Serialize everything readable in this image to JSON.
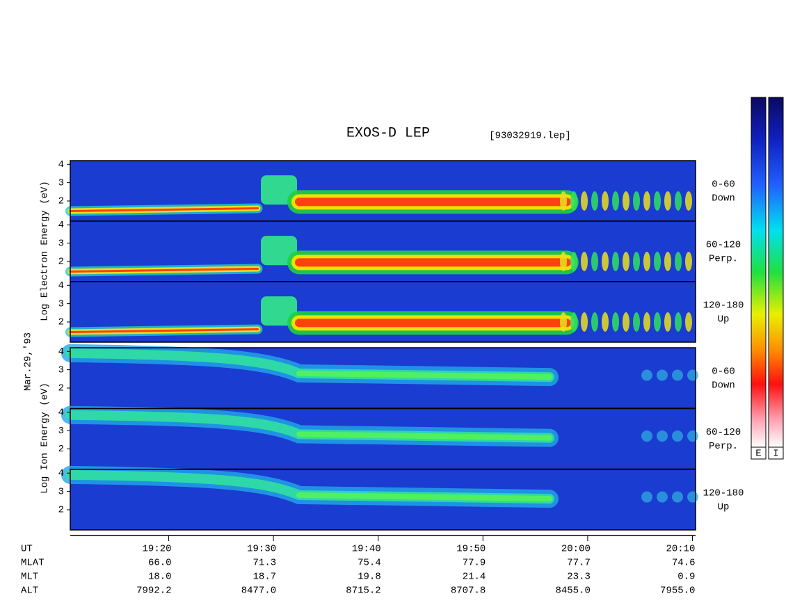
{
  "chart_data": {
    "type": "spectrogram",
    "title": "EXOS-D LEP",
    "file": "[93032919.lep]",
    "date": "Mar.29,'93",
    "electron_axis_label": "Log  Electron  Energy (eV)",
    "ion_axis_label": "Log  Ion  Energy (eV)",
    "xlim": [
      10.6,
      70.3
    ],
    "xticks": [
      {
        "value": 20,
        "label": "19:20"
      },
      {
        "value": 30,
        "label": "19:30"
      },
      {
        "value": 40,
        "label": "19:40"
      },
      {
        "value": 50,
        "label": "19:50"
      },
      {
        "value": 60,
        "label": "20:00"
      },
      {
        "value": 70,
        "label": "20:10"
      }
    ],
    "panels": [
      {
        "species": "electron",
        "label_top": "0-60",
        "label_bottom": "Down",
        "ylim": [
          0.9,
          4.2
        ],
        "yticks": [
          2,
          3,
          4
        ]
      },
      {
        "species": "electron",
        "label_top": "60-120",
        "label_bottom": "Perp.",
        "ylim": [
          0.9,
          4.2
        ],
        "yticks": [
          2,
          3,
          4
        ]
      },
      {
        "species": "electron",
        "label_top": "120-180",
        "label_bottom": "Up",
        "ylim": [
          0.9,
          4.2
        ],
        "yticks": [
          2,
          3,
          4
        ]
      },
      {
        "species": "ion",
        "label_top": "0-60",
        "label_bottom": "Down",
        "ylim": [
          0.9,
          4.2
        ],
        "yticks": [
          2,
          3,
          4
        ]
      },
      {
        "species": "ion",
        "label_top": "60-120",
        "label_bottom": "Perp.",
        "ylim": [
          0.9,
          4.2
        ],
        "yticks": [
          2,
          3,
          4
        ]
      },
      {
        "species": "ion",
        "label_top": "120-180",
        "label_bottom": "Up",
        "ylim": [
          0.9,
          4.2
        ],
        "yticks": [
          2,
          3,
          4
        ]
      }
    ],
    "x_row_label": "UT",
    "rows": [
      {
        "name": "MLAT",
        "values": [
          "66.0",
          "71.3",
          "75.4",
          "77.9",
          "77.7",
          "74.6"
        ]
      },
      {
        "name": "MLT",
        "values": [
          "18.0",
          "18.7",
          "19.8",
          "21.4",
          "23.3",
          "0.9"
        ]
      },
      {
        "name": "ALT",
        "values": [
          "7992.2",
          "8477.0",
          "8715.2",
          "8707.8",
          "8455.0",
          "7955.0"
        ]
      }
    ],
    "colorbars": [
      "E",
      "I"
    ]
  }
}
